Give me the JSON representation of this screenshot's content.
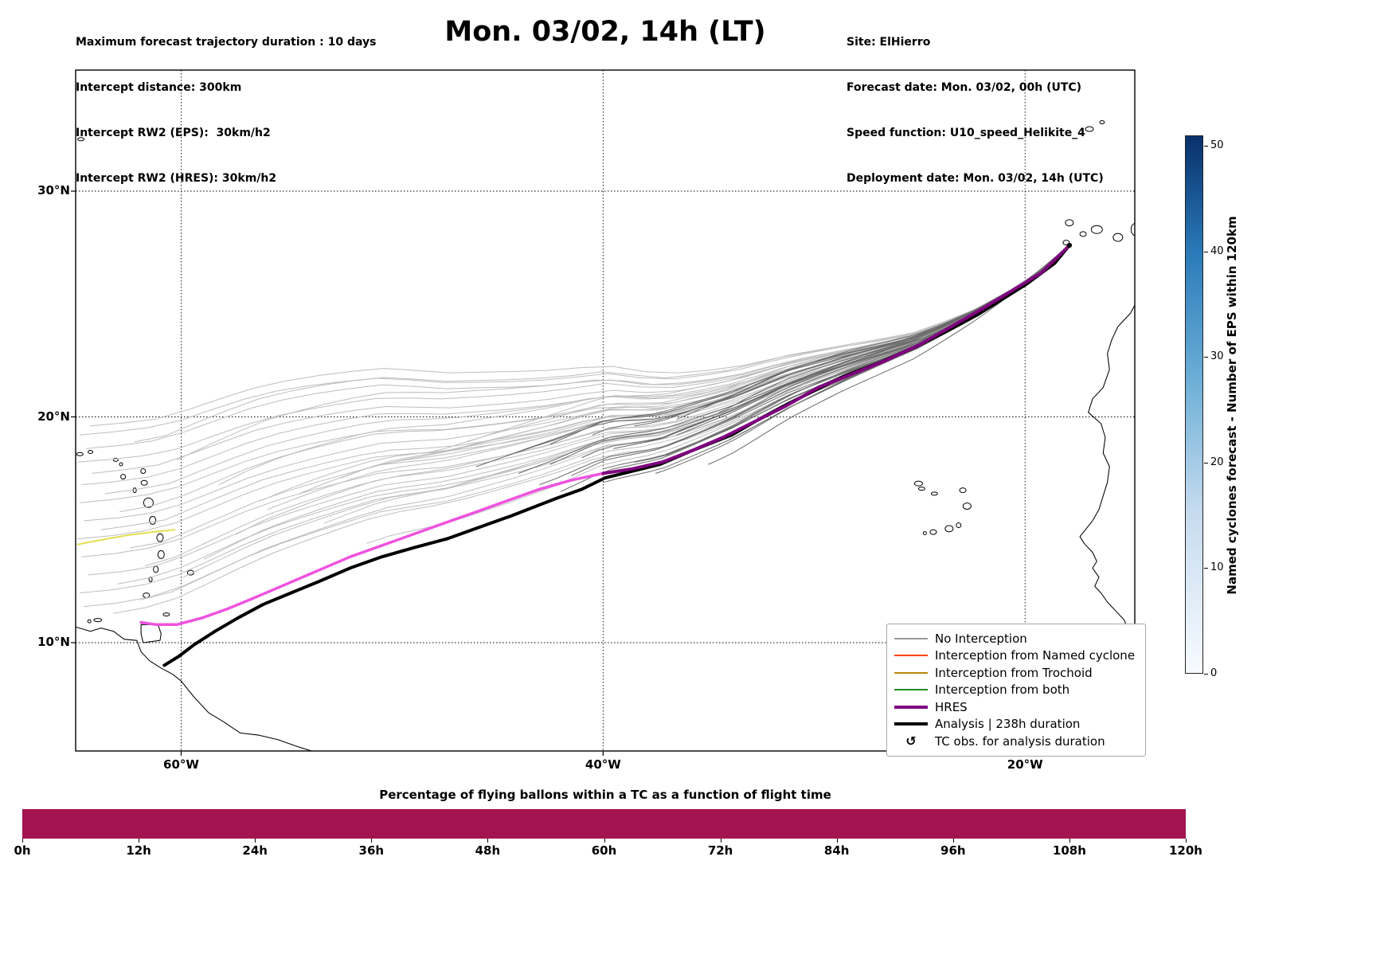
{
  "header": {
    "left_lines": [
      "Maximum forecast trajectory duration : 10 days",
      "Intercept distance: 300km",
      "Intercept RW2 (EPS):  30km/h2",
      "Intercept RW2 (HRES): 30km/h2"
    ],
    "title": "Mon. 03/02, 14h (LT)",
    "right_lines": [
      "Site: ElHierro",
      "Forecast date: Mon. 03/02, 00h (UTC)",
      "Speed function: U10_speed_Helikite_4",
      "Deployment date: Mon. 03/02, 14h (UTC)"
    ]
  },
  "map": {
    "lon_ticks": [
      {
        "label": "60°W",
        "lon": -60
      },
      {
        "label": "40°W",
        "lon": -40
      },
      {
        "label": "20°W",
        "lon": -20
      }
    ],
    "lat_ticks": [
      {
        "label": "30°N",
        "lat": 30
      },
      {
        "label": "20°N",
        "lat": 20
      },
      {
        "label": "10°N",
        "lat": 10
      }
    ],
    "legend": [
      {
        "label": "No Interception",
        "color": "#9a9a9a",
        "lw": 2,
        "type": "line"
      },
      {
        "label": "Interception from Named cyclone",
        "color": "#ff4500",
        "lw": 2,
        "type": "line"
      },
      {
        "label": "Interception from Trochoid",
        "color": "#b8860b",
        "lw": 2,
        "type": "line"
      },
      {
        "label": "Interception from both",
        "color": "#228b22",
        "lw": 2,
        "type": "line"
      },
      {
        "label": "HRES",
        "color": "#800080",
        "lw": 4,
        "type": "line"
      },
      {
        "label": "Analysis | 238h duration",
        "color": "#000000",
        "lw": 4,
        "type": "line"
      },
      {
        "label": "TC obs. for analysis duration",
        "symbol": "↺",
        "type": "marker"
      }
    ]
  },
  "colorbar": {
    "label": "Named cyclones forecast - Number of EPS within 120km",
    "ticks": [
      0,
      10,
      20,
      30,
      40,
      50
    ],
    "vmin": 0,
    "vmax": 51,
    "color_low": "#f7fbff",
    "color_high": "#08306b"
  },
  "bottom_chart": {
    "title": "Percentage of flying ballons within a TC as a function of flight time",
    "bar_color": "#a3134f",
    "value_percent": 100,
    "x_ticks": [
      "0h",
      "12h",
      "24h",
      "36h",
      "48h",
      "60h",
      "72h",
      "84h",
      "96h",
      "108h",
      "120h"
    ]
  },
  "chart_data": {
    "type": "line",
    "title": "Mon. 03/02, 14h (LT)",
    "lon_range": [
      -65,
      -14.8
    ],
    "lat_range": [
      5.2,
      35.4
    ],
    "grid": true,
    "series": [
      {
        "name": "trochoid-trajectory",
        "color": "#e3de4f",
        "width": 2,
        "points": [
          [
            -64.9,
            14.35
          ],
          [
            -63.8,
            14.55
          ],
          [
            -62.6,
            14.75
          ],
          [
            -61.4,
            14.9
          ],
          [
            -60.3,
            15.0
          ]
        ]
      },
      {
        "name": "hres-extension",
        "color": "#ef52e0",
        "width": 3.5,
        "points": [
          [
            -40.0,
            17.5
          ],
          [
            -41.5,
            17.2
          ],
          [
            -43.0,
            16.8
          ],
          [
            -44.5,
            16.3
          ],
          [
            -46.0,
            15.8
          ],
          [
            -47.5,
            15.3
          ],
          [
            -49.0,
            14.8
          ],
          [
            -50.5,
            14.3
          ],
          [
            -52.0,
            13.8
          ],
          [
            -53.5,
            13.2
          ],
          [
            -55.0,
            12.6
          ],
          [
            -56.5,
            12.0
          ],
          [
            -57.8,
            11.5
          ],
          [
            -59.0,
            11.1
          ],
          [
            -60.2,
            10.8
          ],
          [
            -61.2,
            10.8
          ],
          [
            -61.9,
            10.9
          ]
        ]
      },
      {
        "name": "analysis",
        "color": "#000000",
        "width": 4,
        "points": [
          [
            -17.9,
            27.6
          ],
          [
            -18.6,
            26.8
          ],
          [
            -19.9,
            25.9
          ],
          [
            -21.1,
            25.2
          ],
          [
            -22.3,
            24.5
          ],
          [
            -23.7,
            23.8
          ],
          [
            -25.2,
            23.1
          ],
          [
            -26.9,
            22.4
          ],
          [
            -28.6,
            21.8
          ],
          [
            -29.9,
            21.2
          ],
          [
            -31.2,
            20.6
          ],
          [
            -32.6,
            19.9
          ],
          [
            -33.9,
            19.2
          ],
          [
            -35.8,
            18.5
          ],
          [
            -37.3,
            17.9
          ],
          [
            -38.6,
            17.6
          ],
          [
            -39.9,
            17.3
          ],
          [
            -41.0,
            16.8
          ],
          [
            -42.2,
            16.4
          ],
          [
            -44.4,
            15.6
          ],
          [
            -45.9,
            15.1
          ],
          [
            -47.4,
            14.6
          ],
          [
            -49.0,
            14.2
          ],
          [
            -50.5,
            13.8
          ],
          [
            -52.0,
            13.3
          ],
          [
            -53.5,
            12.7
          ],
          [
            -54.8,
            12.2
          ],
          [
            -56.1,
            11.7
          ],
          [
            -57.3,
            11.1
          ],
          [
            -58.4,
            10.5
          ],
          [
            -59.4,
            9.9
          ],
          [
            -60.1,
            9.4
          ],
          [
            -60.8,
            9.0
          ]
        ]
      },
      {
        "name": "hres",
        "color": "#800080",
        "width": 4,
        "points": [
          [
            -17.9,
            27.6
          ],
          [
            -19.2,
            26.4
          ],
          [
            -20.6,
            25.6
          ],
          [
            -22.0,
            24.8
          ],
          [
            -23.5,
            24.0
          ],
          [
            -25.0,
            23.2
          ],
          [
            -26.6,
            22.5
          ],
          [
            -28.2,
            21.9
          ],
          [
            -29.8,
            21.3
          ],
          [
            -31.3,
            20.5
          ],
          [
            -32.8,
            19.8
          ],
          [
            -34.3,
            19.1
          ],
          [
            -35.8,
            18.5
          ],
          [
            -37.2,
            18.0
          ],
          [
            -38.6,
            17.7
          ],
          [
            -40.0,
            17.5
          ]
        ]
      }
    ],
    "ensemble": {
      "start": [
        -17.9,
        27.6
      ],
      "trunk": [
        [
          -17.9,
          27.6
        ],
        [
          -20,
          25.9
        ],
        [
          -22.3,
          24.5
        ],
        [
          -25.2,
          23.0
        ],
        [
          -28.6,
          21.7
        ],
        [
          -31.2,
          20.6
        ],
        [
          -33.9,
          19.2
        ],
        [
          -35.8,
          18.4
        ],
        [
          -37.3,
          17.8
        ],
        [
          -39.9,
          17.3
        ],
        [
          -42.2,
          16.3
        ],
        [
          -44.4,
          15.5
        ],
        [
          -47.4,
          14.5
        ],
        [
          -50.5,
          13.8
        ],
        [
          -53.5,
          12.7
        ],
        [
          -56.1,
          11.7
        ],
        [
          -58.4,
          10.6
        ],
        [
          -60.8,
          9.5
        ],
        [
          -63,
          9.1
        ],
        [
          -65,
          8.9
        ]
      ],
      "light": {
        "color": "#bdbdbd",
        "width": 1,
        "ends": [
          [
            -64.8,
            19.2
          ],
          [
            -64.5,
            18.6
          ],
          [
            -64.9,
            18.0
          ],
          [
            -64.2,
            17.5
          ],
          [
            -64.7,
            17.0
          ],
          [
            -63.6,
            16.6
          ],
          [
            -64.8,
            16.2
          ],
          [
            -62.9,
            15.8
          ],
          [
            -64.6,
            15.4
          ],
          [
            -63.8,
            15.0
          ],
          [
            -64.9,
            14.6
          ],
          [
            -62.4,
            14.2
          ],
          [
            -64.7,
            13.8
          ],
          [
            -61.7,
            13.4
          ],
          [
            -64.4,
            13.0
          ],
          [
            -63.0,
            12.6
          ],
          [
            -64.8,
            12.2
          ],
          [
            -61.9,
            11.9
          ],
          [
            -64.6,
            11.6
          ],
          [
            -63.2,
            11.3
          ],
          [
            -59.9,
            12.9
          ],
          [
            -58.9,
            13.7
          ],
          [
            -57.4,
            14.8
          ],
          [
            -55.9,
            15.9
          ],
          [
            -54.4,
            16.6
          ],
          [
            -52.4,
            17.3
          ],
          [
            -50.4,
            17.9
          ],
          [
            -48.4,
            18.4
          ],
          [
            -46.4,
            18.9
          ],
          [
            -64.3,
            19.6
          ],
          [
            -62.2,
            18.9
          ],
          [
            -60.2,
            18.1
          ],
          [
            -58.2,
            17.0
          ],
          [
            -56.2,
            16.3
          ],
          [
            -53.2,
            15.3
          ],
          [
            -51.2,
            14.4
          ]
        ]
      },
      "dark": {
        "color": "#6a6a6a",
        "width": 1,
        "ends": [
          [
            -33.5,
            19.8
          ],
          [
            -35.0,
            19.5
          ],
          [
            -36.5,
            19.2
          ],
          [
            -38.0,
            18.9
          ],
          [
            -39.5,
            18.6
          ],
          [
            -41.0,
            18.2
          ],
          [
            -42.5,
            17.9
          ],
          [
            -44.0,
            17.5
          ],
          [
            -34.0,
            19.0
          ],
          [
            -35.5,
            18.6
          ],
          [
            -37.0,
            18.3
          ],
          [
            -38.5,
            18.0
          ],
          [
            -40.0,
            17.7
          ],
          [
            -41.5,
            17.4
          ],
          [
            -43.0,
            17.0
          ],
          [
            -34.5,
            20.2
          ],
          [
            -36.5,
            19.9
          ],
          [
            -38.5,
            19.6
          ],
          [
            -40.5,
            19.2
          ],
          [
            -42.5,
            18.8
          ],
          [
            -44.5,
            18.3
          ],
          [
            -46.0,
            17.8
          ],
          [
            -35.0,
            17.9
          ],
          [
            -37.5,
            17.5
          ],
          [
            -40.0,
            17.1
          ],
          [
            -42.0,
            16.7
          ]
        ]
      }
    }
  }
}
